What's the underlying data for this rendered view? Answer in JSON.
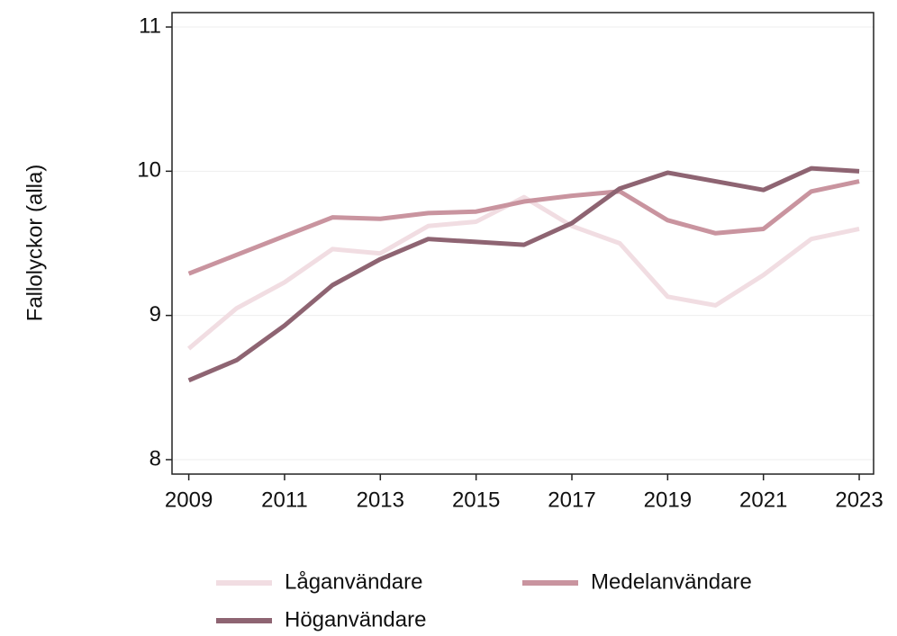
{
  "chart_data": {
    "type": "line",
    "ylabel": "Fallolyckor (alla)",
    "x": [
      2009,
      2010,
      2011,
      2012,
      2013,
      2014,
      2015,
      2016,
      2017,
      2018,
      2019,
      2020,
      2021,
      2022,
      2023
    ],
    "series": [
      {
        "name": "Låganvändare",
        "color": "#f1dde2",
        "values": [
          8.77,
          9.05,
          9.23,
          9.46,
          9.43,
          9.62,
          9.65,
          9.82,
          9.62,
          9.5,
          9.13,
          9.07,
          9.28,
          9.53,
          9.6
        ]
      },
      {
        "name": "Medelanvändare",
        "color": "#c9949f",
        "values": [
          9.29,
          9.42,
          9.55,
          9.68,
          9.67,
          9.71,
          9.72,
          9.79,
          9.83,
          9.86,
          9.66,
          9.57,
          9.6,
          9.86,
          9.93
        ]
      },
      {
        "name": "Höganvändare",
        "color": "#8e6472",
        "values": [
          8.55,
          8.69,
          8.93,
          9.21,
          9.39,
          9.53,
          9.51,
          9.49,
          9.64,
          9.88,
          9.99,
          9.93,
          9.87,
          10.02,
          10.0
        ]
      }
    ],
    "xlim": [
      2008.65,
      2023.3
    ],
    "xticks": [
      2009,
      2011,
      2013,
      2015,
      2017,
      2019,
      2021,
      2023
    ],
    "ylim": [
      7.9,
      11.1
    ],
    "yticks": [
      8,
      9,
      10,
      11
    ],
    "grid": true
  }
}
